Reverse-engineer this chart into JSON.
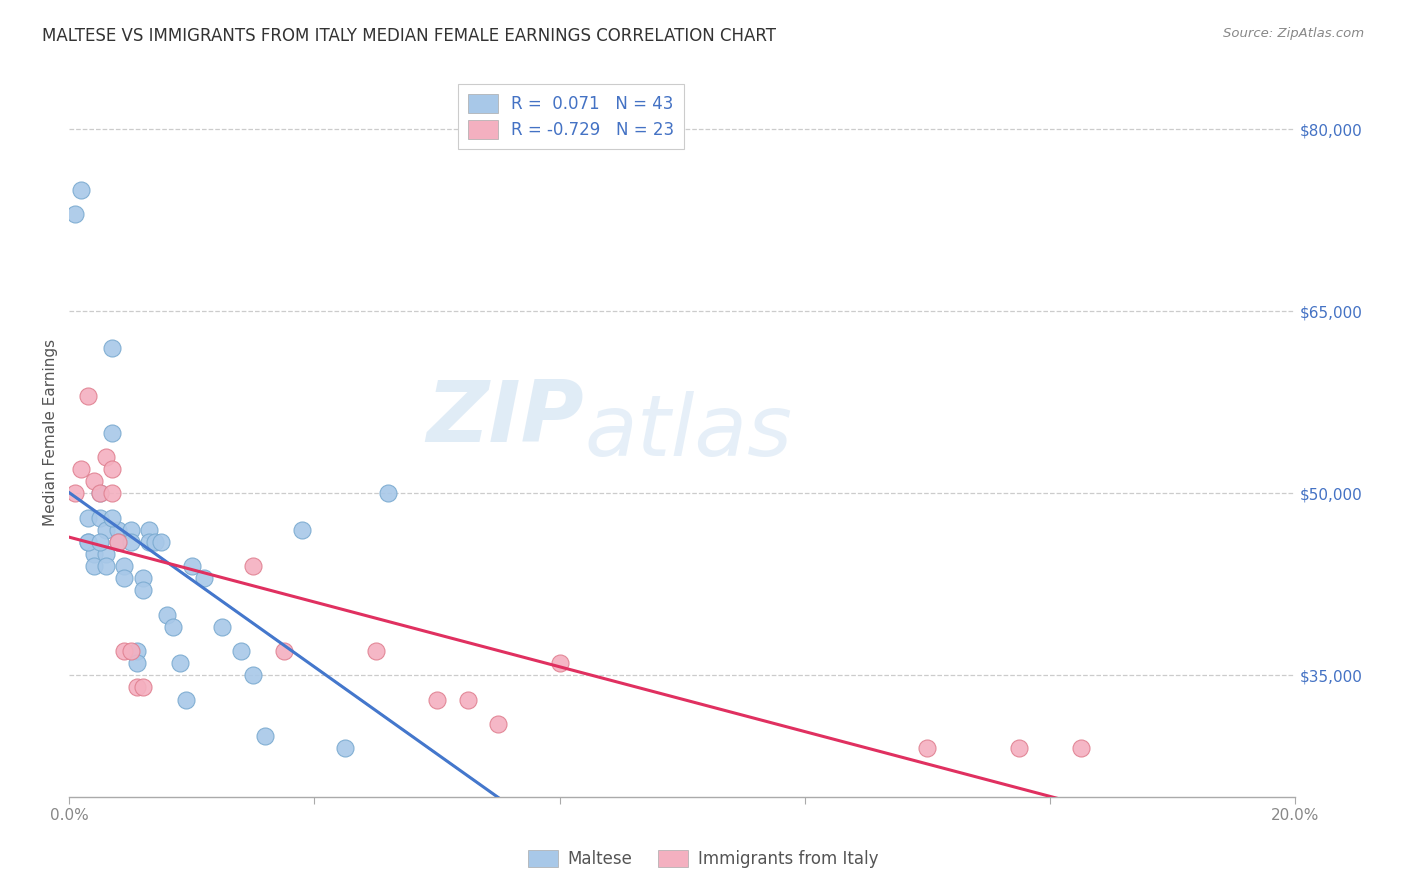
{
  "title": "MALTESE VS IMMIGRANTS FROM ITALY MEDIAN FEMALE EARNINGS CORRELATION CHART",
  "source": "Source: ZipAtlas.com",
  "ylabel": "Median Female Earnings",
  "xlim": [
    0.0,
    0.2
  ],
  "ylim": [
    25000,
    85000
  ],
  "yticks": [
    35000,
    50000,
    65000,
    80000
  ],
  "ytick_labels": [
    "$35,000",
    "$50,000",
    "$65,000",
    "$80,000"
  ],
  "xticks": [
    0.0,
    0.04,
    0.08,
    0.12,
    0.16,
    0.2
  ],
  "xtick_labels": [
    "0.0%",
    "",
    "",
    "",
    "",
    "20.0%"
  ],
  "r_maltese": 0.071,
  "n_maltese": 43,
  "r_italy": -0.729,
  "n_italy": 23,
  "legend_labels": [
    "Maltese",
    "Immigrants from Italy"
  ],
  "maltese_color": "#a8c8e8",
  "maltese_edge_color": "#7aaad0",
  "maltese_line_color": "#4477cc",
  "italy_color": "#f4b0c0",
  "italy_edge_color": "#e08090",
  "italy_line_color": "#e03060",
  "watermark_zip": "ZIP",
  "watermark_atlas": "atlas",
  "background_color": "#ffffff",
  "maltese_x": [
    0.001,
    0.002,
    0.003,
    0.003,
    0.004,
    0.004,
    0.005,
    0.005,
    0.006,
    0.006,
    0.006,
    0.007,
    0.007,
    0.008,
    0.008,
    0.009,
    0.009,
    0.01,
    0.01,
    0.011,
    0.011,
    0.012,
    0.012,
    0.013,
    0.013,
    0.014,
    0.015,
    0.016,
    0.017,
    0.018,
    0.019,
    0.02,
    0.022,
    0.025,
    0.028,
    0.03,
    0.032,
    0.038,
    0.045,
    0.052,
    0.003,
    0.005,
    0.007
  ],
  "maltese_y": [
    73000,
    75000,
    48000,
    46000,
    45000,
    44000,
    50000,
    48000,
    47000,
    45000,
    44000,
    62000,
    55000,
    47000,
    46000,
    44000,
    43000,
    47000,
    46000,
    37000,
    36000,
    43000,
    42000,
    47000,
    46000,
    46000,
    46000,
    40000,
    39000,
    36000,
    33000,
    44000,
    43000,
    39000,
    37000,
    35000,
    30000,
    47000,
    29000,
    50000,
    46000,
    46000,
    48000
  ],
  "italy_x": [
    0.001,
    0.002,
    0.003,
    0.004,
    0.005,
    0.006,
    0.007,
    0.007,
    0.008,
    0.009,
    0.01,
    0.011,
    0.012,
    0.03,
    0.035,
    0.05,
    0.06,
    0.065,
    0.07,
    0.08,
    0.14,
    0.155,
    0.165
  ],
  "italy_y": [
    50000,
    52000,
    58000,
    51000,
    50000,
    53000,
    50000,
    52000,
    46000,
    37000,
    37000,
    34000,
    34000,
    44000,
    37000,
    37000,
    33000,
    33000,
    31000,
    36000,
    29000,
    29000,
    29000
  ]
}
